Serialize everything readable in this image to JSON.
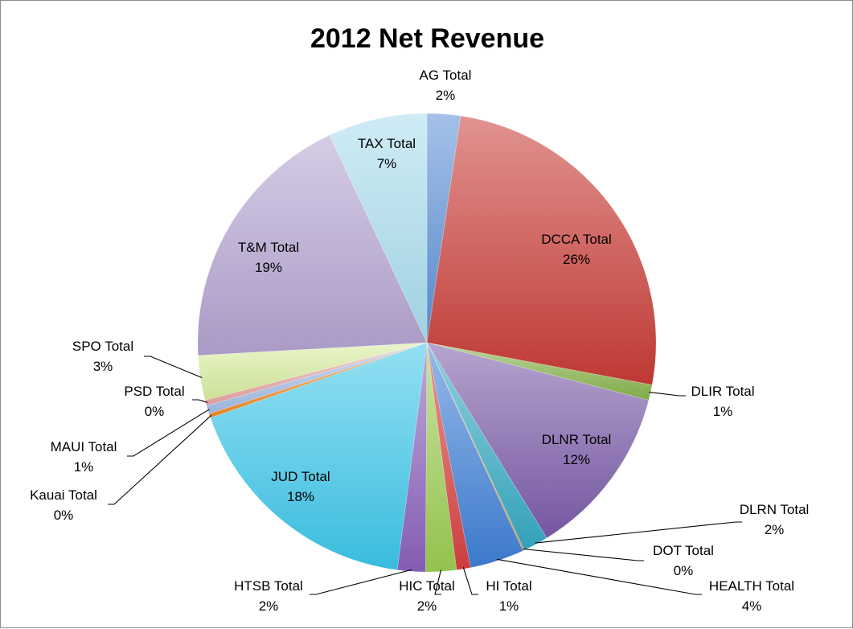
{
  "chart_data": {
    "type": "pie",
    "title": "2012 Net Revenue",
    "slices": [
      {
        "name": "AG Total",
        "percent_label": "2%",
        "value": 2.4,
        "color": "#5b8fd6"
      },
      {
        "name": "DCCA Total",
        "percent_label": "26%",
        "value": 26.0,
        "color": "#c83b36"
      },
      {
        "name": "DLIR Total",
        "percent_label": "1%",
        "value": 1.1,
        "color": "#86b34a"
      },
      {
        "name": "DLNR Total",
        "percent_label": "12%",
        "value": 12.4,
        "color": "#7a5aa8"
      },
      {
        "name": "DLRN Total",
        "percent_label": "2%",
        "value": 1.8,
        "color": "#35a9c2"
      },
      {
        "name": "DOT Total",
        "percent_label": "0%",
        "value": 0.1,
        "color": "#f0943a"
      },
      {
        "name": "HEALTH Total",
        "percent_label": "4%",
        "value": 3.9,
        "color": "#3f7fd6"
      },
      {
        "name": "HI Total",
        "percent_label": "1%",
        "value": 1.0,
        "color": "#d84040"
      },
      {
        "name": "HIC Total",
        "percent_label": "2%",
        "value": 2.2,
        "color": "#9ccc52"
      },
      {
        "name": "HTSB Total",
        "percent_label": "2%",
        "value": 2.0,
        "color": "#8a62bb"
      },
      {
        "name": "JUD Total",
        "percent_label": "18%",
        "value": 17.9,
        "color": "#3cc6ea"
      },
      {
        "name": "Kauai Total",
        "percent_label": "0%",
        "value": 0.3,
        "color": "#f08a24"
      },
      {
        "name": "MAUI Total",
        "percent_label": "1%",
        "value": 0.6,
        "color": "#a3bde6"
      },
      {
        "name": "PSD Total",
        "percent_label": "0%",
        "value": 0.4,
        "color": "#e8a4a2"
      },
      {
        "name": "SPO Total",
        "percent_label": "3%",
        "value": 3.2,
        "color": "#d7ec9e"
      },
      {
        "name": "T&M Total",
        "percent_label": "19%",
        "value": 19.2,
        "color": "#b3a2d0"
      },
      {
        "name": "TAX Total",
        "percent_label": "7%",
        "value": 7.1,
        "color": "#a8dcec"
      }
    ]
  }
}
